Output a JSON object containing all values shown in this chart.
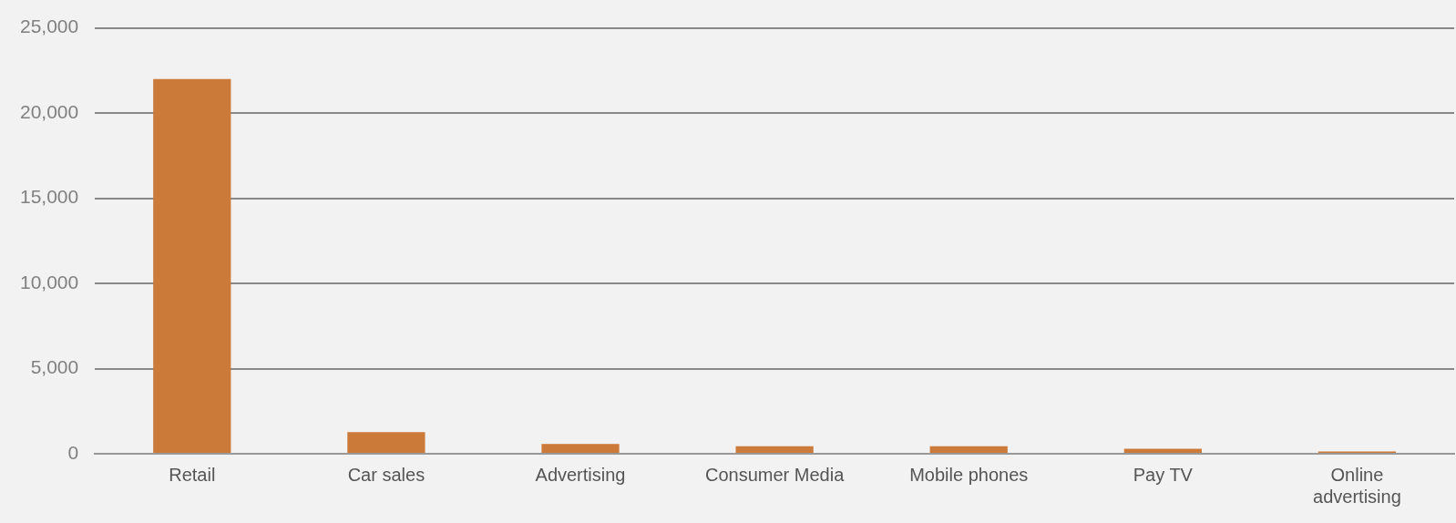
{
  "chart_data": {
    "type": "bar",
    "categories": [
      "Retail",
      "Car sales",
      "Advertising",
      "Consumer Media",
      "Mobile phones",
      "Pay TV",
      "Online advertising"
    ],
    "values": [
      22000,
      1270,
      580,
      440,
      440,
      290,
      140
    ],
    "color": "#cc7a3a",
    "ylim": [
      0,
      25000
    ],
    "yticks": [
      {
        "value": 0,
        "label": "0"
      },
      {
        "value": 5000,
        "label": "5,000"
      },
      {
        "value": 10000,
        "label": "10,000"
      },
      {
        "value": 15000,
        "label": "15,000"
      },
      {
        "value": 20000,
        "label": "20,000"
      },
      {
        "value": 25000,
        "label": "25,000"
      }
    ],
    "grid": "y",
    "legend": false
  }
}
